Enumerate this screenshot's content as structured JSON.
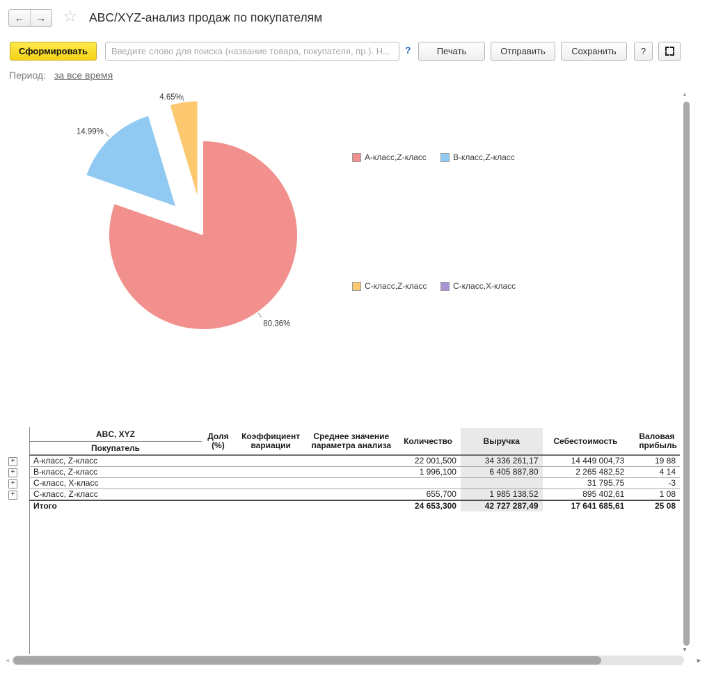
{
  "header": {
    "title": "ABC/XYZ-анализ продаж по покупателям"
  },
  "icons": {
    "back": "←",
    "forward": "→",
    "star": "☆",
    "scroll_up": "▲",
    "scroll_down": "▼",
    "scroll_left": "◄",
    "scroll_right": "►",
    "expander_plus": "+"
  },
  "toolbar": {
    "generate_label": "Сформировать",
    "search_placeholder": "Введите слово для поиска (название товара, покупателя, пр.). Н...",
    "search_help": "?",
    "print_label": "Печать",
    "send_label": "Отправить",
    "save_label": "Сохранить",
    "help_label": "?"
  },
  "period": {
    "label": "Период:",
    "value": "за все время"
  },
  "chart_data": {
    "type": "pie",
    "title": "",
    "start_angle": 90,
    "direction": "clockwise",
    "legend_position": "right",
    "slices": [
      {
        "label": "А-класс,Z-класс",
        "value": 80.36,
        "display": "80.36%",
        "color": "#f1908d",
        "exploded": false
      },
      {
        "label": "В-класс,Z-класс",
        "value": 14.99,
        "display": "14.99%",
        "color": "#90caf2",
        "exploded": true
      },
      {
        "label": "С-класс,Z-класс",
        "value": 4.65,
        "display": "4.65%",
        "color": "#fbc76f",
        "exploded": true
      },
      {
        "label": "С-класс,X-класс",
        "value": 0,
        "display": "",
        "color": "#a995d2",
        "exploded": false
      }
    ],
    "legend": [
      {
        "label": "А-класс,Z-класс",
        "color": "#f1908d"
      },
      {
        "label": "В-класс,Z-класс",
        "color": "#90caf2"
      },
      {
        "label": "С-класс,Z-класс",
        "color": "#fbc76f"
      },
      {
        "label": "С-класс,X-класс",
        "color": "#a995d2"
      }
    ]
  },
  "table": {
    "corner": {
      "top": "ABC, XYZ",
      "bottom": "Покупатель"
    },
    "columns": [
      {
        "label": "Доля\n(%)",
        "highlight": false
      },
      {
        "label": "Коэффициент\nвариации",
        "highlight": false
      },
      {
        "label": "Среднее значение\nпараметра анализа",
        "highlight": false
      },
      {
        "label": "Количество",
        "highlight": false
      },
      {
        "label": "Выручка",
        "highlight": true
      },
      {
        "label": "Себестоимость",
        "highlight": false
      },
      {
        "label": "Валовая\nприбыль",
        "highlight": false
      }
    ],
    "rows": [
      {
        "name": "А-класс, Z-класс",
        "expandable": true,
        "values": [
          "",
          "",
          "",
          "22 001,500",
          "34 336 261,17",
          "14 449 004,73",
          "19 88"
        ]
      },
      {
        "name": "В-класс, Z-класс",
        "expandable": true,
        "values": [
          "",
          "",
          "",
          "1 996,100",
          "6 405 887,80",
          "2 265 482,52",
          "4 14"
        ]
      },
      {
        "name": "С-класс, X-класс",
        "expandable": true,
        "values": [
          "",
          "",
          "",
          "",
          "",
          "31 795,75",
          "-3"
        ]
      },
      {
        "name": "С-класс, Z-класс",
        "expandable": true,
        "values": [
          "",
          "",
          "",
          "655,700",
          "1 985 138,52",
          "895 402,61",
          "1 08"
        ]
      }
    ],
    "total": {
      "name": "Итого",
      "values": [
        "",
        "",
        "",
        "24 653,300",
        "42 727 287,49",
        "17 641 685,61",
        "25 08"
      ]
    }
  }
}
